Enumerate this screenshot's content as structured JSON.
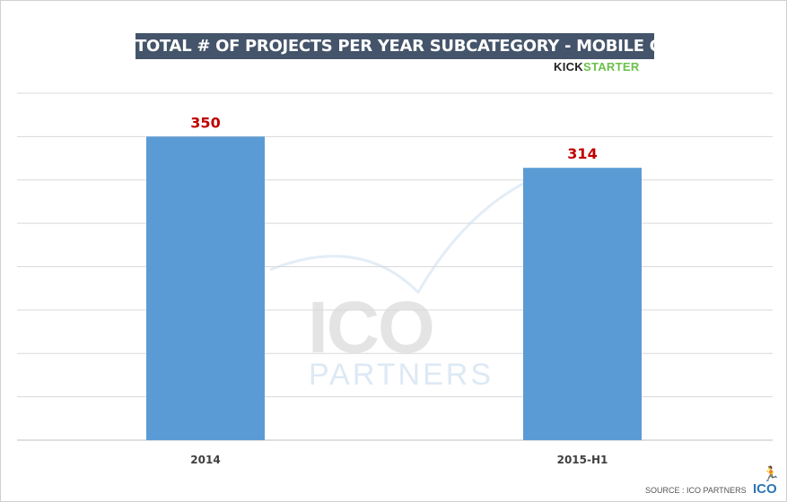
{
  "chart_data": {
    "type": "bar",
    "title": "TOTAL # OF PROJECTS PER YEAR SUBCATEGORY - MOBILE GAMES",
    "categories": [
      "2014",
      "2015-H1"
    ],
    "values": [
      350,
      314
    ],
    "data_labels": [
      "350",
      "314"
    ],
    "xlabel": "",
    "ylabel": "",
    "ylim": [
      0,
      400
    ],
    "grid_step": 50,
    "grid": true,
    "y_tick_labels_shown": false,
    "colors": {
      "bar": "#5b9bd5",
      "data_label": "#c00000",
      "title_bg": "#44546a",
      "grid": "#d9d9d9"
    }
  },
  "branding": {
    "kickstarter_part1": "KICK",
    "kickstarter_part2": "STARTER",
    "watermark_main": "ICO",
    "watermark_sub": "PARTNERS",
    "source": "SOURCE : ICO PARTNERS",
    "logo": "ICO",
    "runner_icon": "running-person-icon"
  }
}
